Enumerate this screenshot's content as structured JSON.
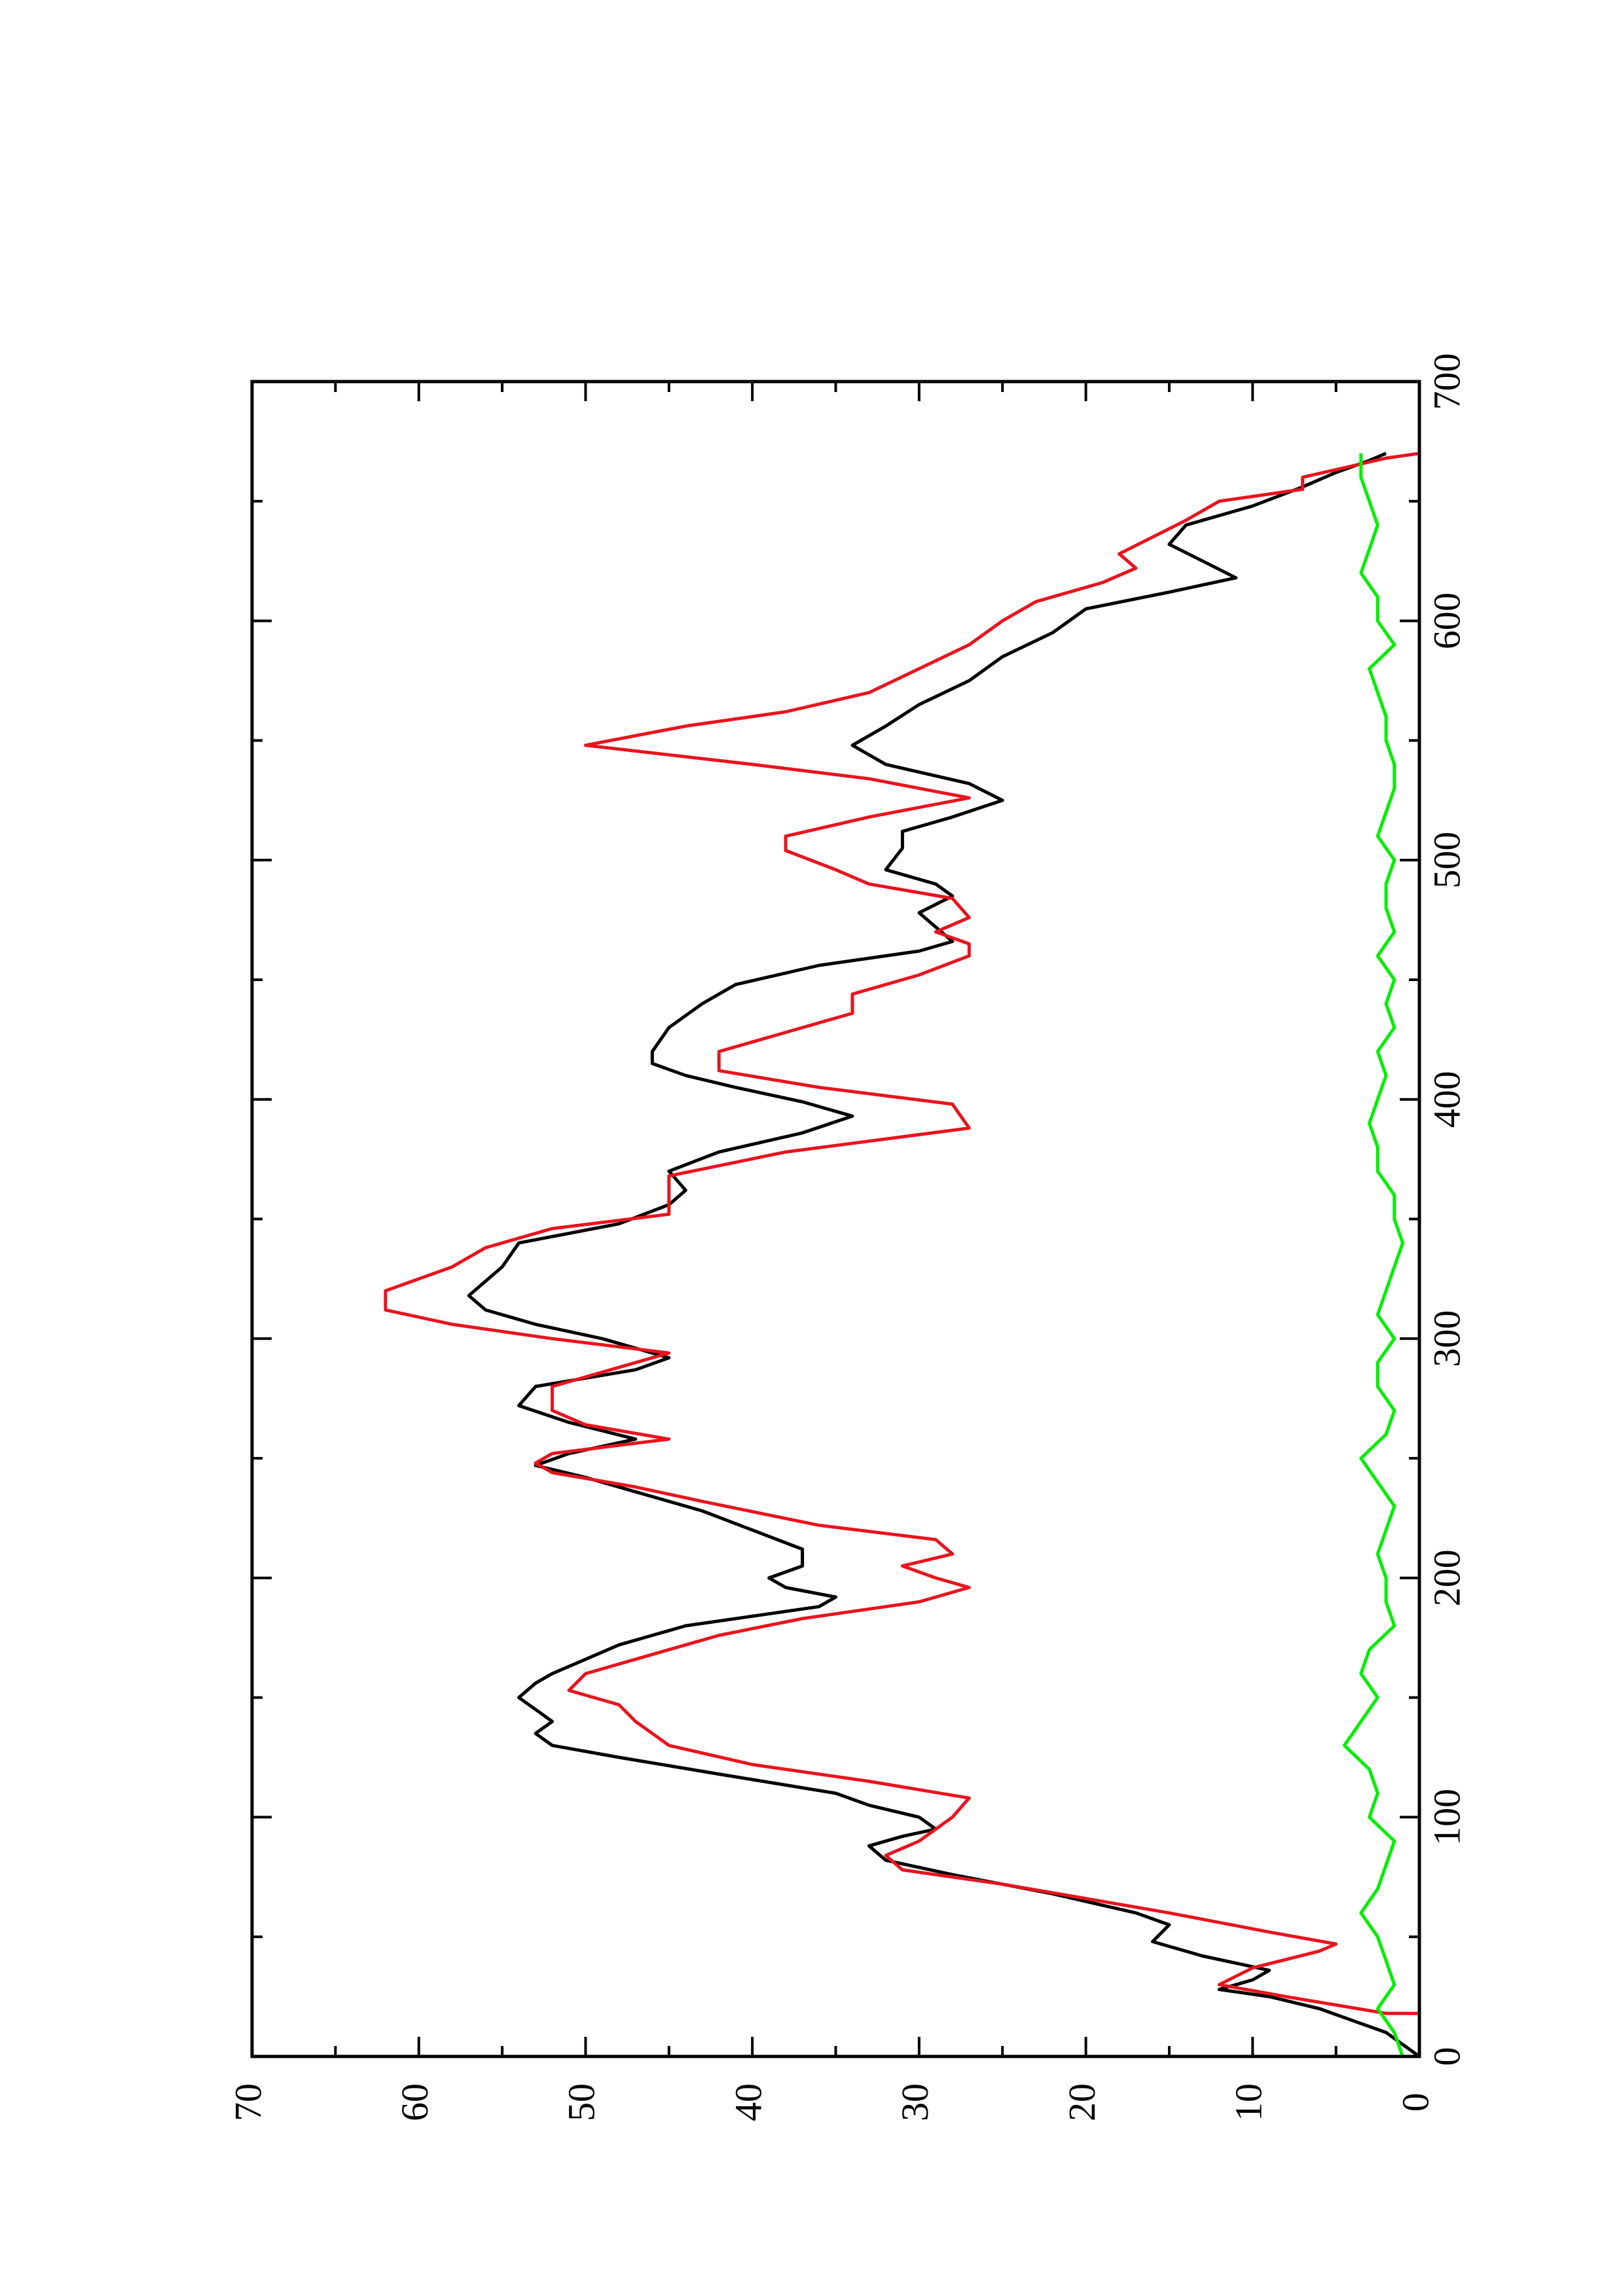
{
  "chart_data": {
    "type": "line",
    "orientation": "rotated-90-ccw",
    "title": "",
    "xlabel": "",
    "ylabel": "",
    "xlim": [
      0,
      700
    ],
    "ylim": [
      0,
      70
    ],
    "x_ticks": [
      0,
      100,
      200,
      300,
      400,
      500,
      600,
      700
    ],
    "x_tick_labels": [
      "0",
      "100",
      "200",
      "300",
      "400",
      "500",
      "600",
      "700"
    ],
    "y_ticks": [
      0,
      10,
      20,
      30,
      40,
      50,
      60,
      70
    ],
    "y_tick_labels": [
      "0",
      "10",
      "20",
      "30",
      "40",
      "50",
      "60",
      "70"
    ],
    "grid": false,
    "legend": "none",
    "series": [
      {
        "color": "#000000",
        "x": [
          0,
          5,
          10,
          15,
          20,
          25,
          28,
          32,
          36,
          42,
          48,
          55,
          60,
          68,
          76,
          82,
          88,
          92,
          95,
          100,
          105,
          110,
          118,
          125,
          130,
          135,
          140,
          145,
          150,
          156,
          160,
          166,
          172,
          180,
          188,
          192,
          196,
          200,
          205,
          212,
          220,
          228,
          236,
          242,
          247,
          252,
          258,
          265,
          272,
          280,
          287,
          292,
          300,
          306,
          312,
          318,
          324,
          330,
          340,
          348,
          356,
          362,
          370,
          378,
          386,
          393,
          399,
          405,
          410,
          415,
          420,
          430,
          440,
          448,
          456,
          462,
          466,
          472,
          478,
          485,
          490,
          496,
          505,
          512,
          518,
          525,
          532,
          540,
          548,
          556,
          565,
          575,
          585,
          595,
          605,
          612,
          618,
          625,
          632,
          640,
          648,
          656,
          662,
          667,
          670
        ],
        "values": [
          0,
          1,
          2,
          4,
          6,
          9,
          12,
          10,
          9,
          13,
          16,
          15,
          17,
          22,
          28,
          32,
          33,
          31,
          29,
          30,
          33,
          35,
          42,
          48,
          52,
          53,
          52,
          53,
          54,
          53,
          52,
          50,
          48,
          44,
          36,
          35,
          38,
          39,
          37,
          37,
          40,
          43,
          47,
          50,
          53,
          51,
          47,
          51,
          54,
          53,
          47,
          45,
          49,
          53,
          56,
          57,
          56,
          55,
          54,
          48,
          45,
          44,
          45,
          42,
          37,
          34,
          37,
          41,
          44,
          46,
          46,
          45,
          43,
          41,
          36,
          30,
          28,
          29,
          30,
          28,
          29,
          32,
          31,
          31,
          28,
          25,
          27,
          32,
          34,
          32,
          30,
          27,
          25,
          22,
          20,
          15,
          11,
          13,
          15,
          14,
          10,
          7,
          5,
          3,
          2
        ]
      },
      {
        "color": "#e8141e",
        "x": [
          0,
          18,
          18,
          25,
          30,
          37,
          44,
          47,
          52,
          60,
          66,
          72,
          78,
          84,
          90,
          95,
          100,
          108,
          115,
          122,
          130,
          140,
          147,
          153,
          160,
          168,
          176,
          183,
          190,
          196,
          200,
          205,
          210,
          216,
          222,
          232,
          238,
          244,
          248,
          252,
          258,
          264,
          270,
          280,
          288,
          294,
          300,
          306,
          312,
          320,
          330,
          338,
          346,
          352,
          360,
          368,
          378,
          388,
          398,
          405,
          412,
          420,
          428,
          436,
          444,
          452,
          460,
          465,
          470,
          476,
          484,
          490,
          496,
          504,
          510,
          518,
          526,
          534,
          540,
          548,
          556,
          562,
          570,
          580,
          590,
          600,
          608,
          616,
          622,
          628,
          635,
          642,
          650,
          655,
          660,
          668,
          670
        ],
        "values": [
          0,
          0,
          2,
          8,
          12,
          10,
          6,
          5,
          9,
          15,
          20,
          25,
          31,
          32,
          30,
          29,
          28,
          27,
          33,
          40,
          45,
          47,
          48,
          51,
          50,
          46,
          42,
          37,
          30,
          27,
          29,
          31,
          28,
          29,
          36,
          43,
          47,
          52,
          53,
          52,
          45,
          50,
          52,
          52,
          48,
          45,
          52,
          58,
          62,
          62,
          58,
          56,
          52,
          45,
          45,
          45,
          38,
          27,
          28,
          36,
          42,
          42,
          38,
          34,
          34,
          30,
          27,
          27,
          29,
          27,
          28,
          33,
          35,
          38,
          38,
          33,
          27,
          33,
          40,
          50,
          44,
          38,
          33,
          30,
          27,
          25,
          23,
          19,
          17,
          18,
          16,
          14,
          12,
          7,
          7,
          2,
          0
        ]
      },
      {
        "color": "#00ee00",
        "x": [
          0,
          10,
          20,
          30,
          40,
          50,
          60,
          70,
          80,
          90,
          100,
          110,
          120,
          130,
          140,
          150,
          160,
          170,
          180,
          190,
          200,
          210,
          220,
          230,
          240,
          250,
          260,
          270,
          280,
          290,
          300,
          310,
          320,
          330,
          340,
          350,
          360,
          370,
          380,
          390,
          400,
          410,
          420,
          430,
          440,
          450,
          460,
          470,
          480,
          490,
          500,
          510,
          520,
          530,
          540,
          550,
          560,
          570,
          580,
          590,
          600,
          610,
          620,
          630,
          640,
          650,
          660,
          670
        ],
        "values": [
          1,
          1.5,
          2.5,
          1.5,
          2,
          2.5,
          3.5,
          2.5,
          2,
          1.5,
          3,
          2.5,
          3,
          4.5,
          3.5,
          2.5,
          3.5,
          3,
          1.5,
          2,
          2,
          2.5,
          2,
          1.5,
          2.5,
          3.5,
          2,
          1.5,
          2.5,
          2.5,
          1.5,
          2.5,
          2,
          1.5,
          1,
          1.5,
          1.5,
          2.5,
          2.5,
          3,
          2.5,
          2,
          2.5,
          1.5,
          2,
          1.5,
          2.5,
          1.5,
          2,
          2,
          1.5,
          2.5,
          2,
          1.5,
          1.5,
          2,
          2,
          2.5,
          3,
          1.5,
          2.5,
          2.5,
          3.5,
          3,
          2.5,
          3,
          3.5,
          3.5
        ]
      }
    ]
  }
}
